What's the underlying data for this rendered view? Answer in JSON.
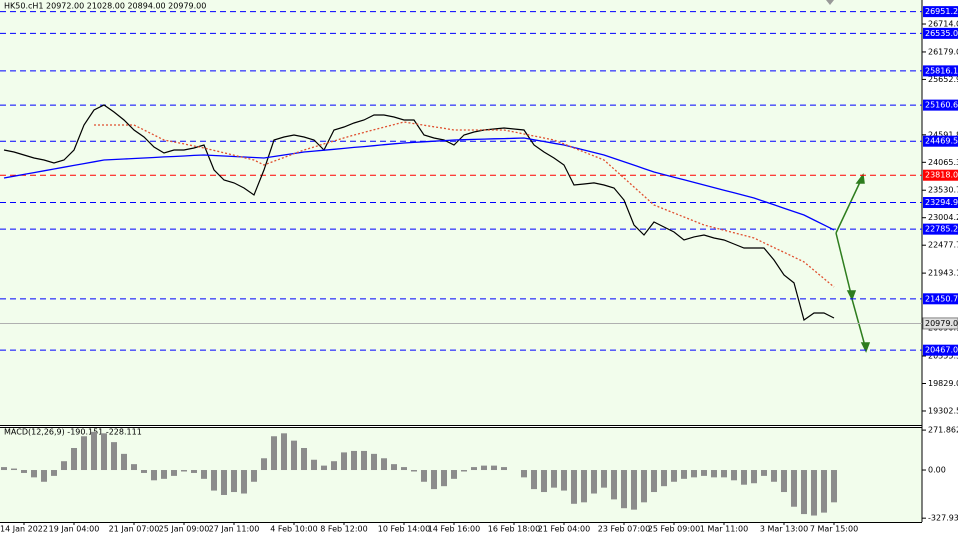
{
  "header": {
    "symbol_info": "HK50.cH1  20972.00 21028.00 20894.00 20979.00"
  },
  "chart_data": [
    {
      "type": "line",
      "categories": [
        null,
        null,
        "14 Jan 2022",
        null,
        null,
        null,
        null,
        "19 Jan 04:00",
        null,
        null,
        null,
        null,
        null,
        "21 Jan 07:00",
        null,
        null,
        null,
        null,
        "25 Jan 09:00",
        null,
        null,
        null,
        null,
        "27 Jan 11:00",
        null,
        null,
        null,
        null,
        null,
        "4 Feb 10:00",
        null,
        null,
        null,
        null,
        "8 Feb 12:00",
        null,
        null,
        null,
        null,
        null,
        "10 Feb 14:00",
        null,
        null,
        null,
        null,
        "14 Feb 16:00",
        null,
        null,
        null,
        null,
        null,
        "16 Feb 18:00",
        null,
        null,
        null,
        null,
        "21 Feb 04:00",
        null,
        null,
        null,
        null,
        null,
        "23 Feb 07:00",
        null,
        null,
        null,
        null,
        "25 Feb 09:00",
        null,
        null,
        null,
        null,
        "1 Mar 11:00",
        null,
        null,
        null,
        null,
        null,
        "3 Mar 13:00",
        null,
        null,
        null,
        null,
        "7 Mar 15:00"
      ],
      "series": [
        {
          "color": "#000000",
          "style": "solid",
          "values": [
            24302,
            24263,
            24206,
            24148,
            24110,
            24052,
            24110,
            24302,
            24780,
            25067,
            25163,
            25029,
            24876,
            24685,
            24550,
            24359,
            24244,
            24302,
            24302,
            24340,
            24397,
            23919,
            23727,
            23670,
            23574,
            23440,
            23919,
            24493,
            24550,
            24589,
            24550,
            24493,
            24302,
            24685,
            24742,
            24819,
            24876,
            24972,
            24972,
            24933,
            24876,
            24876,
            24589,
            24531,
            24493,
            24397,
            24589,
            24646,
            24685,
            24704,
            24723,
            24704,
            24685,
            24397,
            24263,
            24148,
            24014,
            23631,
            23650,
            23670,
            23631,
            23574,
            23344,
            22865,
            22674,
            22923,
            22827,
            22731,
            22578,
            22636,
            22674,
            22616,
            22578,
            22501,
            22425,
            22425,
            22425,
            22195,
            21907,
            21755,
            21046,
            21180,
            21180,
            21084
          ]
        },
        {
          "color": "#0000ff",
          "style": "solid",
          "values": [
            23765,
            23800,
            23834,
            23869,
            23903,
            23938,
            23972,
            24007,
            24041,
            24076,
            24110,
            24120,
            24129,
            24139,
            24148,
            24158,
            24168,
            24177,
            24187,
            24197,
            24206,
            24196,
            24187,
            24177,
            24167,
            24158,
            24148,
            24177,
            24206,
            24234,
            24263,
            24280,
            24298,
            24315,
            24332,
            24350,
            24367,
            24384,
            24402,
            24419,
            24436,
            24447,
            24459,
            24470,
            24482,
            24493,
            24498,
            24504,
            24509,
            24515,
            24520,
            24525,
            24531,
            24497,
            24464,
            24430,
            24397,
            24349,
            24301,
            24254,
            24206,
            24141,
            24076,
            24011,
            23945,
            23880,
            23830,
            23780,
            23731,
            23681,
            23631,
            23581,
            23531,
            23482,
            23432,
            23382,
            23317,
            23252,
            23187,
            23122,
            23057,
            22961,
            22866,
            22770
          ]
        },
        {
          "color": "#e05030",
          "style": "dotted",
          "values": [
            null,
            null,
            null,
            null,
            null,
            null,
            null,
            null,
            null,
            24780,
            24780,
            24780,
            24780,
            24780,
            24684,
            24589,
            24493,
            24455,
            24417,
            24378,
            24340,
            24294,
            24248,
            24202,
            24156,
            24110,
            24014,
            24086,
            24158,
            24230,
            24302,
            24359,
            24417,
            24474,
            24532,
            24589,
            24639,
            24689,
            24738,
            24788,
            24838,
            24807,
            24777,
            24746,
            24716,
            24685,
            24685,
            24685,
            24685,
            24685,
            24685,
            24647,
            24608,
            24570,
            24531,
            24493,
            24416,
            24340,
            24263,
            24187,
            24110,
            23938,
            23765,
            23593,
            23420,
            23248,
            23171,
            23095,
            23018,
            22942,
            22865,
            22815,
            22765,
            22716,
            22666,
            22616,
            22524,
            22432,
            22341,
            22249,
            22157,
            21997,
            21838,
            21678
          ]
        }
      ],
      "ylim": [
        19034,
        27174
      ],
      "yticks": [
        {
          "value": 26714,
          "label": "26714.00"
        },
        {
          "value": 26179,
          "label": "26179.00"
        },
        {
          "value": 25652.9,
          "label": "25652.90"
        },
        {
          "value": 24591.8,
          "label": "24591.80"
        },
        {
          "value": 24065.3,
          "label": "24065.30"
        },
        {
          "value": 23530.7,
          "label": "23530.70"
        },
        {
          "value": 23004.2,
          "label": "23004.20"
        },
        {
          "value": 22477.7,
          "label": "22477.70"
        },
        {
          "value": 21943.1,
          "label": "21943.10"
        },
        {
          "value": 20890.1,
          "label": "20890.10"
        },
        {
          "value": 20355.5,
          "label": "20355.50"
        },
        {
          "value": 19829,
          "label": "19829.00"
        },
        {
          "value": 19302.5,
          "label": "19302.50"
        }
      ],
      "levels": {
        "values": [
          26951.26,
          26535,
          25816.19,
          25160.63,
          24469.58,
          23818,
          23294.97,
          22785.21,
          21450.78,
          20467.01
        ],
        "value_labels": [
          "26951.26",
          "26535.00",
          "25816.19",
          "25160.63",
          "24469.58",
          "23818.00",
          "23294.97",
          "22785.21",
          "21450.78",
          "20467.01"
        ],
        "colors": [
          "#0000ff",
          "#0000ff",
          "#0000ff",
          "#0000ff",
          "#0000ff",
          "#ff0000",
          "#0000ff",
          "#0000ff",
          "#0000ff",
          "#0000ff"
        ]
      },
      "last": {
        "value": 20979,
        "label": "20979.00"
      }
    },
    {
      "type": "bar",
      "title": "MACD(12,26,9) -190.151 -228.111",
      "color": "#8c8c8c",
      "values": [
        20,
        10,
        -20,
        -50,
        -80,
        -40,
        60,
        150,
        230,
        260,
        250,
        190,
        110,
        40,
        -20,
        -70,
        -60,
        -40,
        -10,
        -20,
        -60,
        -140,
        -170,
        -150,
        -160,
        -80,
        80,
        230,
        250,
        200,
        150,
        70,
        30,
        60,
        120,
        130,
        130,
        110,
        80,
        40,
        20,
        -10,
        -80,
        -130,
        -110,
        -60,
        -10,
        20,
        30,
        30,
        20,
        0,
        -50,
        -130,
        -150,
        -120,
        -140,
        -230,
        -220,
        -160,
        -120,
        -200,
        -260,
        -270,
        -220,
        -150,
        -110,
        -80,
        -60,
        -50,
        -40,
        -50,
        -50,
        -70,
        -100,
        -90,
        -40,
        -80,
        -150,
        -250,
        -300,
        -310,
        -290,
        -220
      ],
      "ylim": [
        -354,
        293
      ],
      "yticks": [
        271.862,
        {
          "value": 0,
          "label": "0.00"
        },
        -327.937
      ]
    }
  ]
}
